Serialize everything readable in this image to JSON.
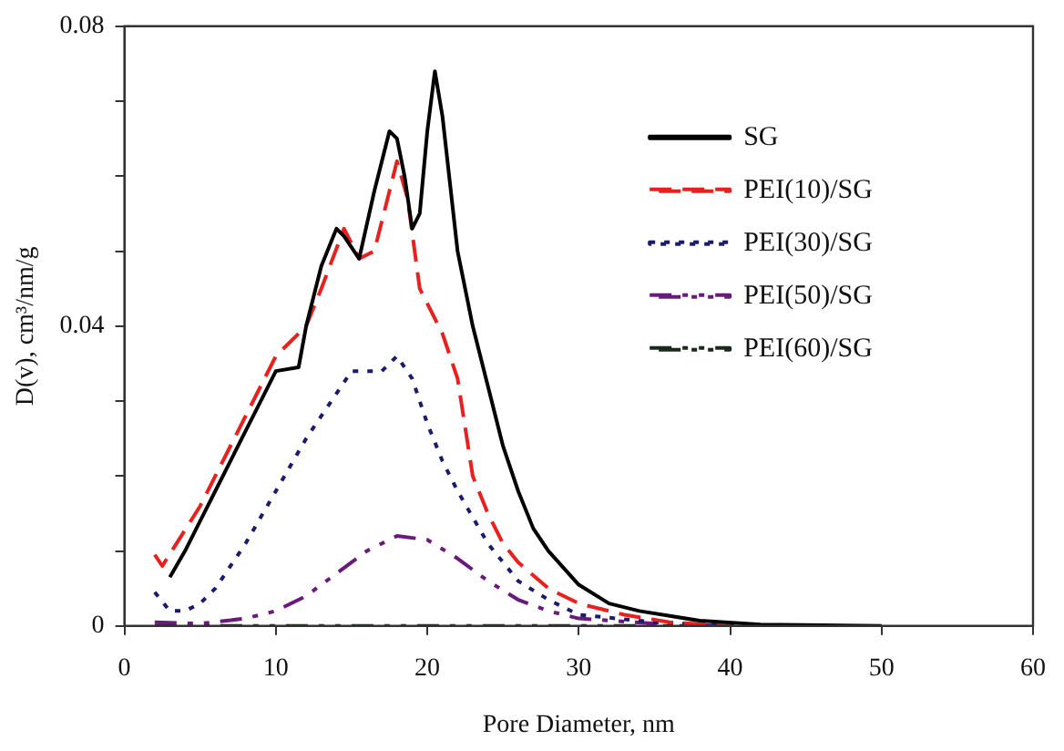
{
  "chart_data": {
    "type": "line",
    "xlabel": "Pore Diameter, nm",
    "ylabel": "D(v), cm³/nm/g",
    "xlim": [
      0,
      60
    ],
    "xticks": [
      0,
      10,
      20,
      30,
      40,
      50,
      60
    ],
    "ylim": [
      0,
      0.08
    ],
    "yticks": [
      0,
      {
        "value": 0.01,
        "label": null
      },
      {
        "value": 0.02,
        "label": null
      },
      {
        "value": 0.03,
        "label": null
      },
      0.04,
      {
        "value": 0.05,
        "label": null
      },
      {
        "value": 0.06,
        "label": null
      },
      {
        "value": 0.07,
        "label": null
      },
      0.08
    ],
    "legend": "top right",
    "marker": "none",
    "series": [
      {
        "name": "SG",
        "color": "#000000",
        "line_style": "solid",
        "x": [
          3,
          4,
          5,
          6,
          7,
          8,
          9,
          10,
          11.5,
          12,
          13,
          14,
          14.5,
          15.5,
          16.5,
          17.5,
          18,
          18.5,
          19,
          19.5,
          20,
          20.5,
          21,
          22,
          23,
          24,
          25,
          26,
          27,
          28,
          30,
          32,
          34,
          38,
          42,
          50
        ],
        "values": [
          0.0065,
          0.01,
          0.014,
          0.018,
          0.022,
          0.026,
          0.03,
          0.034,
          0.0345,
          0.04,
          0.048,
          0.053,
          0.052,
          0.049,
          0.058,
          0.066,
          0.065,
          0.06,
          0.053,
          0.055,
          0.066,
          0.074,
          0.068,
          0.05,
          0.04,
          0.032,
          0.024,
          0.018,
          0.013,
          0.01,
          0.0055,
          0.003,
          0.002,
          0.0007,
          0.0002,
          0
        ]
      },
      {
        "name": "PEI(10)/SG",
        "color": "#e8201e",
        "line_style": "dashed",
        "x": [
          2,
          2.5,
          5,
          10,
          12,
          13,
          14.5,
          15.5,
          16.5,
          17.5,
          18,
          18.7,
          19.5,
          21,
          22,
          23,
          24,
          25,
          26,
          28,
          30,
          33,
          36,
          40
        ],
        "values": [
          0.0095,
          0.008,
          0.016,
          0.036,
          0.04,
          0.045,
          0.053,
          0.049,
          0.05,
          0.058,
          0.062,
          0.057,
          0.045,
          0.039,
          0.033,
          0.02,
          0.015,
          0.011,
          0.0085,
          0.005,
          0.003,
          0.0015,
          0.0005,
          0
        ]
      },
      {
        "name": "PEI(30)/SG",
        "color": "#1a1a6e",
        "line_style": "dotted",
        "x": [
          2,
          3,
          4,
          5,
          6,
          8,
          10,
          12,
          14,
          15,
          17,
          18,
          19,
          20,
          21,
          22,
          24,
          26,
          28,
          30,
          35,
          40
        ],
        "values": [
          0.0045,
          0.002,
          0.002,
          0.003,
          0.005,
          0.011,
          0.018,
          0.025,
          0.031,
          0.034,
          0.034,
          0.036,
          0.033,
          0.027,
          0.022,
          0.018,
          0.011,
          0.006,
          0.0035,
          0.0015,
          0.0005,
          0
        ]
      },
      {
        "name": "PEI(50)/SG",
        "color": "#6a1a7a",
        "line_style": "dashdot",
        "x": [
          2,
          5,
          8,
          10,
          12,
          14,
          16,
          18,
          20,
          22,
          24,
          26,
          28,
          30,
          35,
          40
        ],
        "values": [
          0.0005,
          0.0003,
          0.001,
          0.002,
          0.004,
          0.007,
          0.01,
          0.012,
          0.0115,
          0.009,
          0.006,
          0.0035,
          0.002,
          0.001,
          0.0003,
          0
        ]
      },
      {
        "name": "PEI(60)/SG",
        "color": "#1a2a1a",
        "line_style": "dashdot",
        "x": [
          2,
          10,
          20,
          30,
          40,
          45
        ],
        "values": [
          0,
          0,
          0,
          0,
          0,
          0
        ]
      }
    ]
  }
}
